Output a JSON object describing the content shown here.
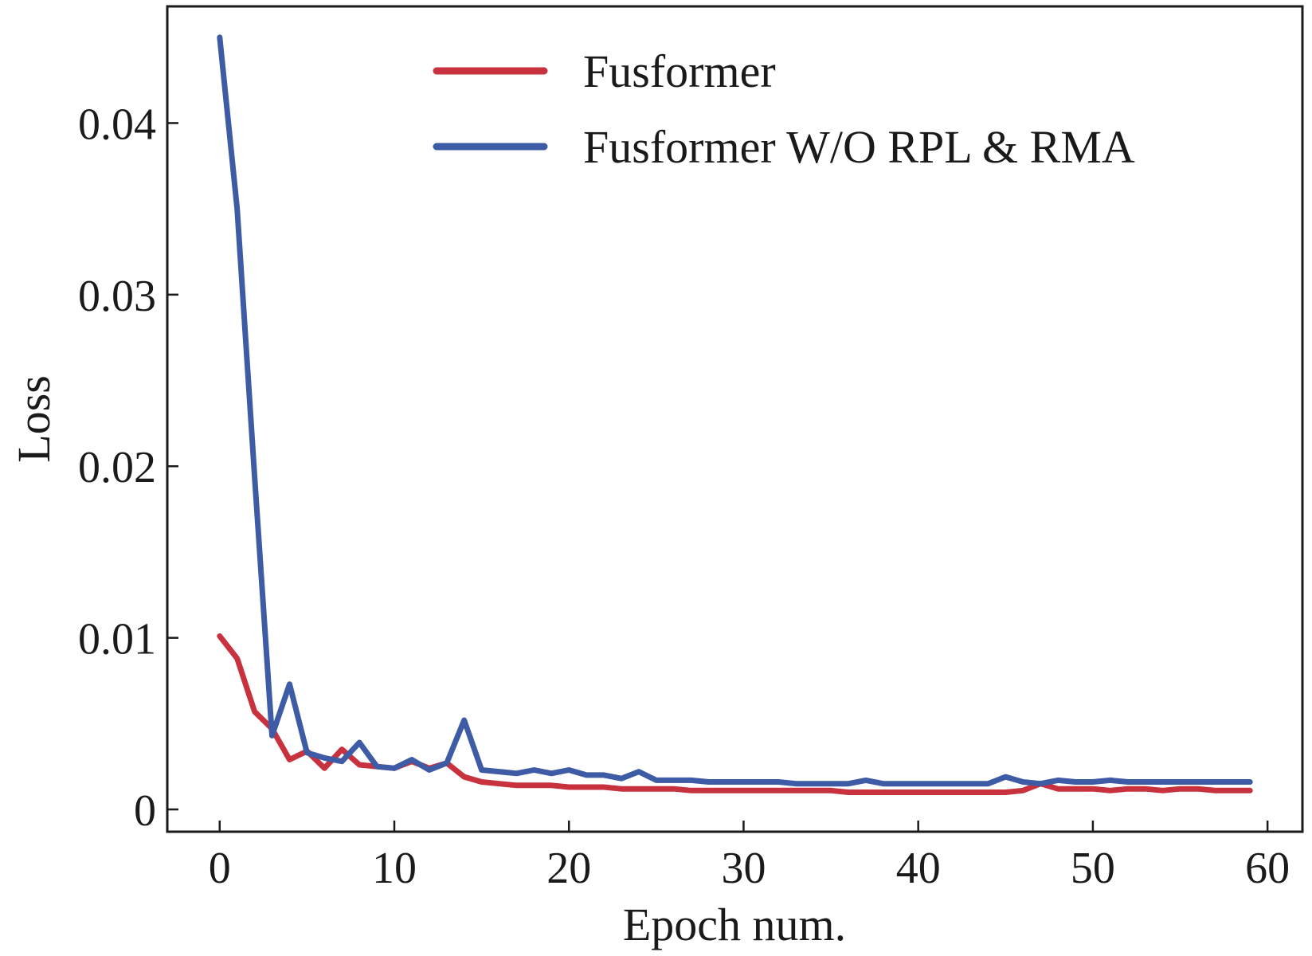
{
  "chart_data": {
    "type": "line",
    "title": "",
    "xlabel": "Epoch num.",
    "ylabel": "Loss",
    "xlim": [
      -3,
      62
    ],
    "ylim": [
      -0.0013,
      0.0468
    ],
    "xticks": [
      0,
      10,
      20,
      30,
      40,
      50,
      60
    ],
    "yticks": [
      0,
      0.01,
      0.02,
      0.03,
      0.04
    ],
    "xtick_labels": [
      "0",
      "10",
      "20",
      "30",
      "40",
      "50",
      "60"
    ],
    "ytick_labels": [
      "0",
      "0.01",
      "0.02",
      "0.03",
      "0.04"
    ],
    "grid": false,
    "legend_position": "top-right",
    "x": [
      0,
      1,
      2,
      3,
      4,
      5,
      6,
      7,
      8,
      9,
      10,
      11,
      12,
      13,
      14,
      15,
      16,
      17,
      18,
      19,
      20,
      21,
      22,
      23,
      24,
      25,
      26,
      27,
      28,
      29,
      30,
      31,
      32,
      33,
      34,
      35,
      36,
      37,
      38,
      39,
      40,
      41,
      42,
      43,
      44,
      45,
      46,
      47,
      48,
      49,
      50,
      51,
      52,
      53,
      54,
      55,
      56,
      57,
      58,
      59
    ],
    "series": [
      {
        "name": "Fusformer",
        "color": "#c8323f",
        "values": [
          0.0101,
          0.0088,
          0.0057,
          0.0047,
          0.0029,
          0.0034,
          0.0024,
          0.0035,
          0.0026,
          0.0025,
          0.0024,
          0.0028,
          0.0024,
          0.0027,
          0.0019,
          0.0016,
          0.0015,
          0.0014,
          0.0014,
          0.0014,
          0.0013,
          0.0013,
          0.0013,
          0.0012,
          0.0012,
          0.0012,
          0.0012,
          0.0011,
          0.0011,
          0.0011,
          0.0011,
          0.0011,
          0.0011,
          0.0011,
          0.0011,
          0.0011,
          0.001,
          0.001,
          0.001,
          0.001,
          0.001,
          0.001,
          0.001,
          0.001,
          0.001,
          0.001,
          0.0011,
          0.0015,
          0.0012,
          0.0012,
          0.0012,
          0.0011,
          0.0012,
          0.0012,
          0.0011,
          0.0012,
          0.0012,
          0.0011,
          0.0011,
          0.0011
        ]
      },
      {
        "name": "Fusformer W/O RPL & RMA",
        "color": "#3e5ba6",
        "values": [
          0.045,
          0.035,
          0.0194,
          0.0043,
          0.0073,
          0.0033,
          0.003,
          0.0028,
          0.0039,
          0.0025,
          0.0024,
          0.0029,
          0.0023,
          0.0027,
          0.0052,
          0.0023,
          0.0022,
          0.0021,
          0.0023,
          0.0021,
          0.0023,
          0.002,
          0.002,
          0.0018,
          0.0022,
          0.0017,
          0.0017,
          0.0017,
          0.0016,
          0.0016,
          0.0016,
          0.0016,
          0.0016,
          0.0015,
          0.0015,
          0.0015,
          0.0015,
          0.0017,
          0.0015,
          0.0015,
          0.0015,
          0.0015,
          0.0015,
          0.0015,
          0.0015,
          0.0019,
          0.0016,
          0.0015,
          0.0017,
          0.0016,
          0.0016,
          0.0017,
          0.0016,
          0.0016,
          0.0016,
          0.0016,
          0.0016,
          0.0016,
          0.0016,
          0.0016
        ]
      }
    ]
  }
}
